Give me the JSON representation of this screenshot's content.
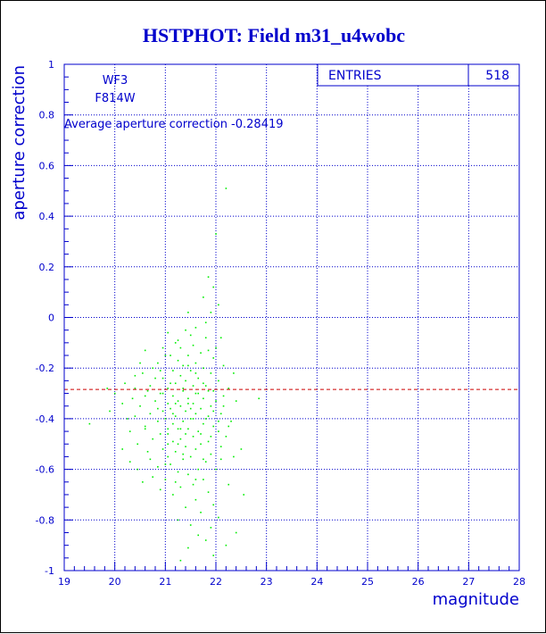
{
  "colors": {
    "title": "#0000cc",
    "axis": "#0000cc",
    "grid": "#0000cc",
    "points": "#00ee00",
    "average_line": "#cc0000",
    "background": "#ffffff"
  },
  "chart_data": {
    "type": "scatter",
    "title": "HSTPHOT: Field m31_u4wobc",
    "xlabel": "magnitude",
    "ylabel": "aperture correction",
    "xlim": [
      19,
      28
    ],
    "ylim": [
      -1,
      1
    ],
    "x_ticks": [
      "19",
      "20",
      "21",
      "22",
      "23",
      "24",
      "25",
      "26",
      "27",
      "28"
    ],
    "y_ticks": [
      "-1",
      "-0.8",
      "-0.6",
      "-0.4",
      "-0.2",
      "0",
      "0.2",
      "0.4",
      "0.6",
      "0.8",
      "1"
    ],
    "grid": true,
    "annotations": {
      "chip": "WF3",
      "filter": "F814W",
      "average_text": "Average aperture correction -0.28419"
    },
    "average_line_y": -0.28419,
    "stats": {
      "label": "ENTRIES",
      "value": "518"
    },
    "series": [
      {
        "points": [
          [
            22.2,
            0.51
          ],
          [
            22.0,
            0.33
          ],
          [
            21.85,
            0.16
          ],
          [
            21.95,
            0.12
          ],
          [
            21.75,
            0.08
          ],
          [
            22.05,
            0.05
          ],
          [
            21.9,
            0.02
          ],
          [
            21.8,
            -0.02
          ],
          [
            21.45,
            0.02
          ],
          [
            21.05,
            -0.06
          ],
          [
            21.4,
            -0.05
          ],
          [
            21.6,
            -0.04
          ],
          [
            22.1,
            -0.08
          ],
          [
            21.2,
            -0.1
          ],
          [
            21.55,
            -0.11
          ],
          [
            21.3,
            -0.12
          ],
          [
            20.95,
            -0.12
          ],
          [
            21.85,
            -0.13
          ],
          [
            21.7,
            -0.14
          ],
          [
            21.45,
            -0.15
          ],
          [
            21.1,
            -0.15
          ],
          [
            20.6,
            -0.13
          ],
          [
            21.95,
            -0.16
          ],
          [
            21.25,
            -0.17
          ],
          [
            21.6,
            -0.18
          ],
          [
            21.35,
            -0.19
          ],
          [
            20.85,
            -0.18
          ],
          [
            22.15,
            -0.19
          ],
          [
            21.75,
            -0.2
          ],
          [
            21.5,
            -0.21
          ],
          [
            21.15,
            -0.21
          ],
          [
            20.75,
            -0.2
          ],
          [
            22.35,
            -0.22
          ],
          [
            21.9,
            -0.22
          ],
          [
            21.3,
            -0.23
          ],
          [
            20.55,
            -0.22
          ],
          [
            21.65,
            -0.24
          ],
          [
            20.95,
            -0.24
          ],
          [
            22.05,
            -0.25
          ],
          [
            21.4,
            -0.25
          ],
          [
            20.2,
            -0.26
          ],
          [
            21.2,
            -0.26
          ],
          [
            21.8,
            -0.27
          ],
          [
            20.7,
            -0.27
          ],
          [
            21.55,
            -0.27
          ],
          [
            22.25,
            -0.28
          ],
          [
            20.4,
            -0.28
          ],
          [
            21.05,
            -0.28
          ],
          [
            21.35,
            -0.29
          ],
          [
            21.95,
            -0.29
          ],
          [
            19.85,
            -0.28
          ],
          [
            20.9,
            -0.3
          ],
          [
            21.6,
            -0.3
          ],
          [
            21.15,
            -0.31
          ],
          [
            20.6,
            -0.31
          ],
          [
            22.15,
            -0.31
          ],
          [
            21.45,
            -0.32
          ],
          [
            20.35,
            -0.32
          ],
          [
            21.75,
            -0.32
          ],
          [
            21.25,
            -0.33
          ],
          [
            20.8,
            -0.33
          ],
          [
            22.4,
            -0.33
          ],
          [
            21.05,
            -0.34
          ],
          [
            21.55,
            -0.34
          ],
          [
            20.15,
            -0.34
          ],
          [
            21.9,
            -0.35
          ],
          [
            21.3,
            -0.35
          ],
          [
            20.5,
            -0.35
          ],
          [
            22.85,
            -0.32
          ],
          [
            21.7,
            -0.36
          ],
          [
            21.1,
            -0.36
          ],
          [
            20.95,
            -0.37
          ],
          [
            21.4,
            -0.37
          ],
          [
            19.9,
            -0.37
          ],
          [
            22.1,
            -0.38
          ],
          [
            21.6,
            -0.38
          ],
          [
            20.7,
            -0.38
          ],
          [
            21.2,
            -0.39
          ],
          [
            21.85,
            -0.39
          ],
          [
            20.4,
            -0.39
          ],
          [
            21.5,
            -0.4
          ],
          [
            21.0,
            -0.4
          ],
          [
            22.3,
            -0.41
          ],
          [
            21.35,
            -0.41
          ],
          [
            20.85,
            -0.41
          ],
          [
            21.75,
            -0.42
          ],
          [
            19.5,
            -0.42
          ],
          [
            21.15,
            -0.42
          ],
          [
            21.95,
            -0.43
          ],
          [
            20.6,
            -0.43
          ],
          [
            21.45,
            -0.44
          ],
          [
            21.25,
            -0.44
          ],
          [
            22.05,
            -0.45
          ],
          [
            20.3,
            -0.45
          ],
          [
            21.65,
            -0.45
          ],
          [
            21.05,
            -0.46
          ],
          [
            20.9,
            -0.46
          ],
          [
            21.55,
            -0.47
          ],
          [
            22.2,
            -0.47
          ],
          [
            21.3,
            -0.48
          ],
          [
            20.75,
            -0.48
          ],
          [
            21.85,
            -0.49
          ],
          [
            21.15,
            -0.49
          ],
          [
            20.45,
            -0.5
          ],
          [
            21.7,
            -0.5
          ],
          [
            21.4,
            -0.51
          ],
          [
            22.1,
            -0.51
          ],
          [
            20.95,
            -0.52
          ],
          [
            21.6,
            -0.52
          ],
          [
            21.2,
            -0.53
          ],
          [
            20.65,
            -0.53
          ],
          [
            21.9,
            -0.54
          ],
          [
            22.5,
            -0.52
          ],
          [
            21.5,
            -0.55
          ],
          [
            21.05,
            -0.55
          ],
          [
            20.3,
            -0.57
          ],
          [
            21.35,
            -0.56
          ],
          [
            21.8,
            -0.57
          ],
          [
            21.1,
            -0.58
          ],
          [
            20.85,
            -0.59
          ],
          [
            21.65,
            -0.6
          ],
          [
            22.0,
            -0.6
          ],
          [
            21.25,
            -0.61
          ],
          [
            21.45,
            -0.62
          ],
          [
            20.75,
            -0.63
          ],
          [
            21.75,
            -0.64
          ],
          [
            21.0,
            -0.64
          ],
          [
            20.55,
            -0.65
          ],
          [
            21.55,
            -0.66
          ],
          [
            22.25,
            -0.66
          ],
          [
            21.3,
            -0.67
          ],
          [
            20.9,
            -0.68
          ],
          [
            21.85,
            -0.69
          ],
          [
            22.55,
            -0.7
          ],
          [
            21.15,
            -0.7
          ],
          [
            21.6,
            -0.72
          ],
          [
            21.95,
            -0.74
          ],
          [
            21.4,
            -0.75
          ],
          [
            21.7,
            -0.77
          ],
          [
            22.05,
            -0.79
          ],
          [
            21.25,
            -0.8
          ],
          [
            21.5,
            -0.82
          ],
          [
            21.9,
            -0.83
          ],
          [
            22.4,
            -0.85
          ],
          [
            21.65,
            -0.86
          ],
          [
            21.8,
            -0.88
          ],
          [
            22.2,
            -0.9
          ],
          [
            21.45,
            -0.91
          ],
          [
            21.95,
            -0.94
          ],
          [
            21.3,
            -0.96
          ],
          [
            20.5,
            -0.18
          ],
          [
            20.0,
            -0.3
          ],
          [
            20.25,
            -0.4
          ],
          [
            20.45,
            -0.6
          ],
          [
            20.6,
            -0.44
          ],
          [
            20.15,
            -0.52
          ],
          [
            21.0,
            -0.15
          ],
          [
            21.25,
            -0.09
          ],
          [
            21.5,
            -0.07
          ],
          [
            22.15,
            -0.35
          ],
          [
            22.25,
            -0.43
          ],
          [
            22.35,
            -0.55
          ],
          [
            22.0,
            -0.12
          ],
          [
            21.8,
            -0.08
          ],
          [
            20.8,
            -0.24
          ],
          [
            20.85,
            -0.36
          ],
          [
            21.05,
            -0.44
          ],
          [
            21.35,
            -0.28
          ],
          [
            21.45,
            -0.34
          ],
          [
            21.6,
            -0.22
          ],
          [
            21.2,
            -0.34
          ],
          [
            21.55,
            -0.4
          ],
          [
            21.4,
            -0.46
          ],
          [
            21.15,
            -0.38
          ],
          [
            21.3,
            -0.44
          ],
          [
            21.65,
            -0.3
          ],
          [
            21.1,
            -0.26
          ],
          [
            20.95,
            -0.3
          ],
          [
            21.5,
            -0.36
          ],
          [
            21.25,
            -0.5
          ],
          [
            21.7,
            -0.46
          ],
          [
            21.35,
            -0.54
          ],
          [
            21.8,
            -0.4
          ],
          [
            20.7,
            -0.56
          ],
          [
            21.0,
            -0.58
          ],
          [
            21.75,
            -0.56
          ],
          [
            21.9,
            -0.47
          ],
          [
            21.05,
            -0.5
          ],
          [
            21.6,
            -0.64
          ],
          [
            21.2,
            -0.65
          ],
          [
            20.65,
            -0.29
          ],
          [
            20.4,
            -0.23
          ],
          [
            20.9,
            -0.21
          ],
          [
            21.45,
            -0.19
          ],
          [
            21.75,
            -0.26
          ],
          [
            22.0,
            -0.33
          ],
          [
            21.85,
            -0.29
          ],
          [
            21.95,
            -0.37
          ],
          [
            22.05,
            -0.41
          ],
          [
            22.1,
            -0.56
          ]
        ]
      }
    ]
  }
}
